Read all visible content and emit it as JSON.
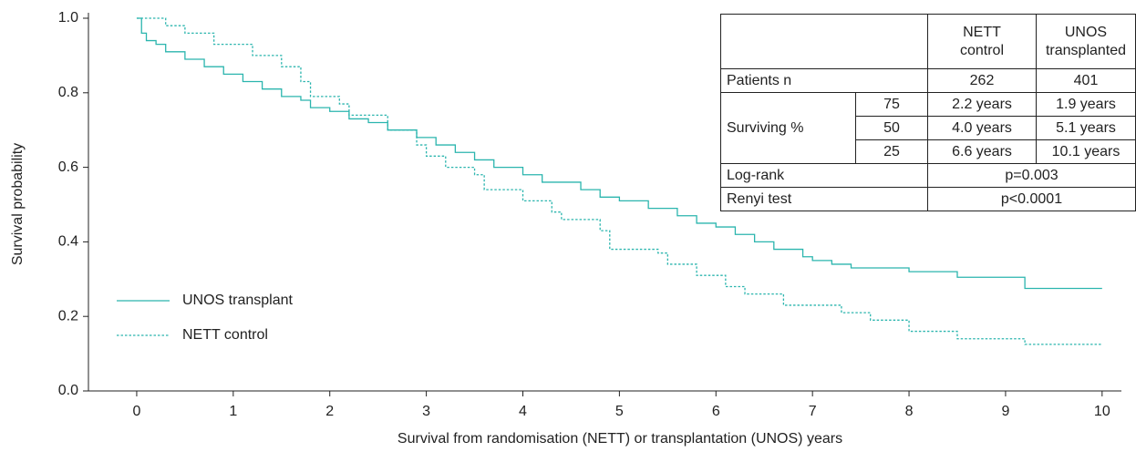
{
  "chart_data": {
    "type": "step",
    "x_label": "Survival from randomisation (NETT) or transplantation (UNOS) years",
    "y_label": "Survival probability",
    "xlim": [
      -0.5,
      10.2
    ],
    "ylim": [
      0,
      1.0
    ],
    "xticks": [
      0,
      1,
      2,
      3,
      4,
      5,
      6,
      7,
      8,
      9,
      10
    ],
    "yticks": [
      {
        "value": 0,
        "label": "0.0"
      },
      0.2,
      0.4,
      0.6,
      0.8,
      {
        "value": 1,
        "label": "1.0"
      }
    ],
    "legend": "lower left",
    "series": [
      {
        "name": "UNOS transplant",
        "color": "#2bb5ae",
        "style": "solid",
        "x": [
          0,
          0.05,
          0.1,
          0.2,
          0.3,
          0.5,
          0.7,
          0.9,
          1.1,
          1.3,
          1.5,
          1.7,
          1.8,
          2.0,
          2.2,
          2.4,
          2.6,
          2.9,
          3.1,
          3.3,
          3.5,
          3.7,
          4.0,
          4.2,
          4.6,
          4.8,
          5.0,
          5.3,
          5.6,
          5.8,
          6.0,
          6.2,
          6.4,
          6.6,
          6.9,
          7.0,
          7.2,
          7.4,
          8.0,
          8.5,
          9.2,
          10.0
        ],
        "values": [
          1.0,
          0.96,
          0.94,
          0.93,
          0.91,
          0.89,
          0.87,
          0.85,
          0.83,
          0.81,
          0.79,
          0.78,
          0.76,
          0.75,
          0.73,
          0.72,
          0.7,
          0.68,
          0.66,
          0.64,
          0.62,
          0.6,
          0.58,
          0.56,
          0.54,
          0.52,
          0.51,
          0.49,
          0.47,
          0.45,
          0.44,
          0.42,
          0.4,
          0.38,
          0.36,
          0.35,
          0.34,
          0.33,
          0.32,
          0.305,
          0.275,
          0.275
        ]
      },
      {
        "name": "NETT control",
        "color": "#2bb5ae",
        "style": "dashed",
        "x": [
          0,
          0.3,
          0.5,
          0.8,
          1.2,
          1.5,
          1.7,
          1.8,
          2.1,
          2.2,
          2.6,
          2.9,
          3.0,
          3.2,
          3.5,
          3.6,
          4.0,
          4.3,
          4.4,
          4.8,
          4.9,
          5.4,
          5.5,
          5.8,
          6.1,
          6.3,
          6.7,
          7.3,
          7.6,
          8.0,
          8.5,
          9.2,
          10.0
        ],
        "values": [
          1.0,
          0.98,
          0.96,
          0.93,
          0.9,
          0.87,
          0.83,
          0.79,
          0.77,
          0.74,
          0.7,
          0.66,
          0.63,
          0.6,
          0.58,
          0.54,
          0.51,
          0.48,
          0.46,
          0.43,
          0.38,
          0.37,
          0.34,
          0.31,
          0.28,
          0.26,
          0.23,
          0.21,
          0.19,
          0.16,
          0.14,
          0.125,
          0.125
        ]
      }
    ],
    "inset_table": {
      "columns": [
        "NETT control",
        "UNOS transplanted"
      ],
      "patients": {
        "label": "Patients n",
        "values": [
          262,
          401
        ]
      },
      "surviving": {
        "label": "Surviving %",
        "rows": [
          {
            "percent": 75,
            "values": [
              "2.2 years",
              "1.9 years"
            ]
          },
          {
            "percent": 50,
            "values": [
              "4.0 years",
              "5.1 years"
            ]
          },
          {
            "percent": 25,
            "values": [
              "6.6 years",
              "10.1 years"
            ]
          }
        ]
      },
      "log_rank": {
        "label": "Log-rank",
        "value": "p=0.003"
      },
      "renyi": {
        "label": "Renyi test",
        "value": "p<0.0001"
      }
    }
  }
}
